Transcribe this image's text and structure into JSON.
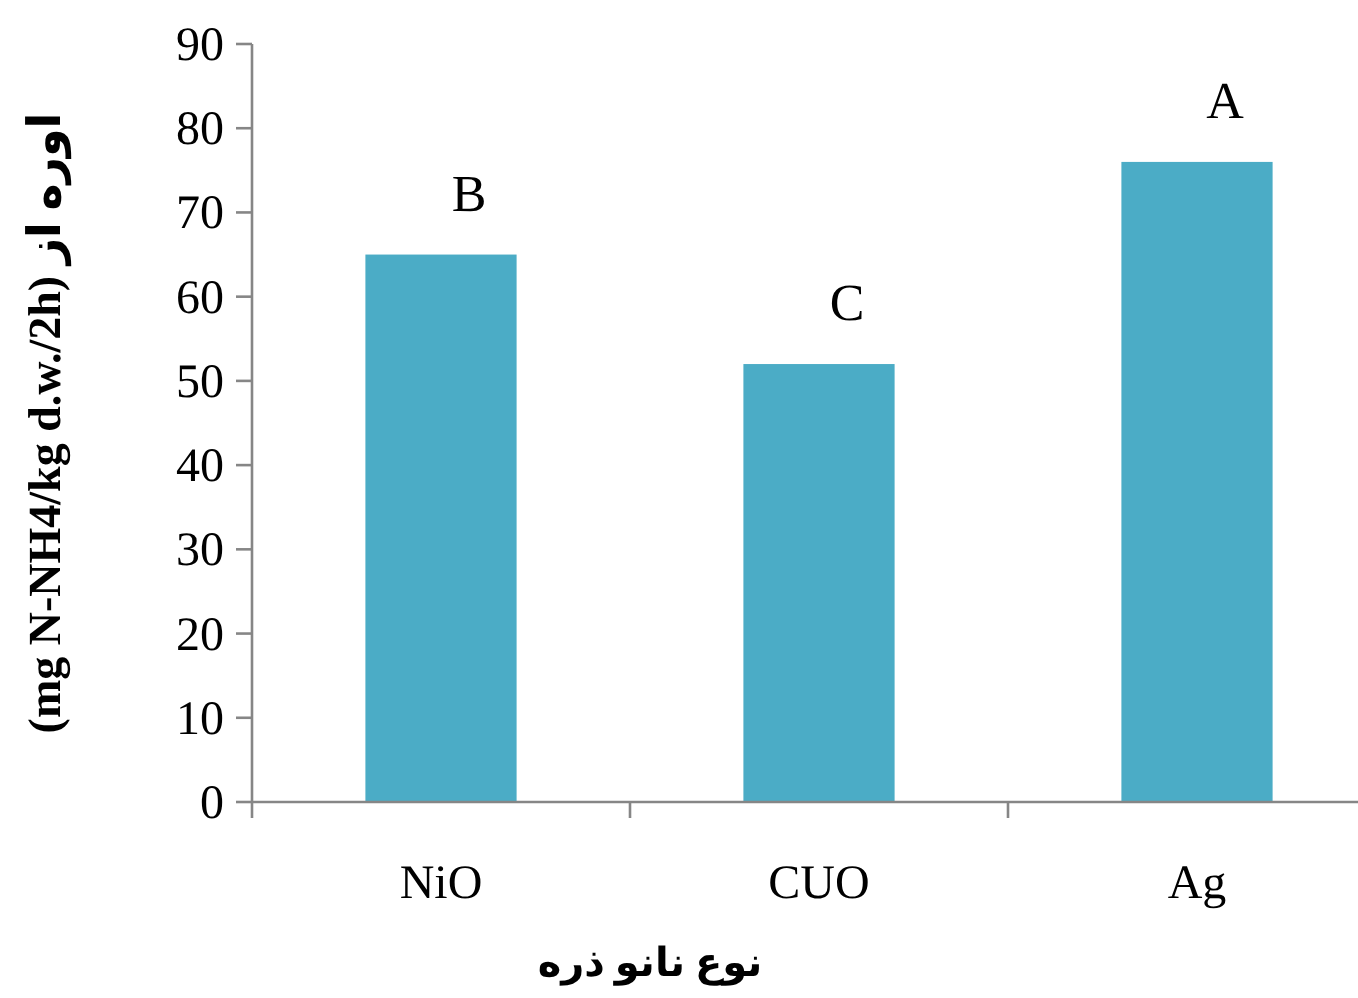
{
  "chart_data": {
    "type": "bar",
    "categories": [
      "NiO",
      "CUO",
      "Ag"
    ],
    "values": [
      65,
      52,
      76
    ],
    "color": "#4bacc6",
    "ylim": [
      0,
      90
    ],
    "yticks": [
      0,
      10,
      20,
      30,
      40,
      50,
      60,
      70,
      80,
      90
    ],
    "xlabel": "نوع نانو ذره",
    "ylabel": "اوره از (mg N-NH4/kg d.w./2h)",
    "annotations": [
      {
        "text": "B",
        "x": "NiO",
        "y": 65
      },
      {
        "text": "C",
        "x": "CUO",
        "y": 52
      },
      {
        "text": "A",
        "x": "Ag",
        "y": 76
      }
    ],
    "grid": false
  }
}
